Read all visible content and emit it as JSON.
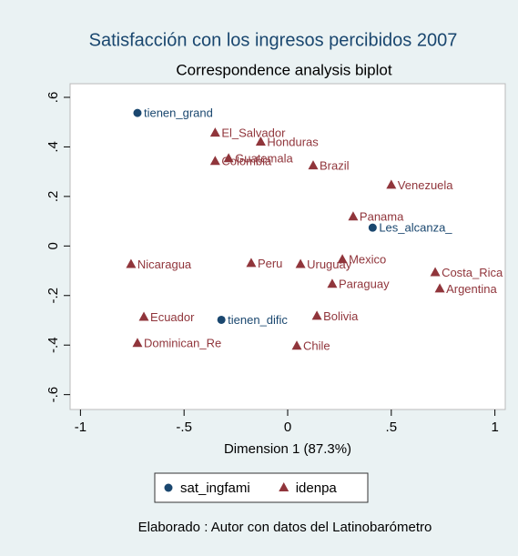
{
  "chart_data": {
    "type": "scatter",
    "title": "Satisfacción con los ingresos percibidos 2007",
    "subtitle": "Correspondence analysis biplot",
    "x_label": "Dimension 1 (87.3%)",
    "note": "Elaborado : Autor con datos del Latinobarómetro",
    "xlim": [
      -1.05,
      1.05
    ],
    "ylim": [
      -0.66,
      0.655
    ],
    "xticks": [
      -1,
      {
        "value": -0.5,
        "label": "-.5"
      },
      0,
      {
        "value": 0.5,
        "label": ".5"
      },
      1
    ],
    "yticks": [
      {
        "value": -0.6,
        "label": "-.6"
      },
      {
        "value": -0.4,
        "label": "-.4"
      },
      {
        "value": -0.2,
        "label": "-.2"
      },
      0,
      {
        "value": 0.2,
        "label": ".2"
      },
      {
        "value": 0.4,
        "label": ".4"
      },
      {
        "value": 0.6,
        "label": ".6"
      }
    ],
    "grid": false,
    "legend": "bottom",
    "series": [
      {
        "name": "sat_ingfami",
        "color": "#1a476f",
        "marker": "circle",
        "labels": [
          "tienen_grand",
          "Les_alcanza_",
          "tienen_dific"
        ],
        "x": [
          -0.725,
          0.41,
          -0.32
        ],
        "values": [
          0.537,
          0.074,
          -0.298
        ]
      },
      {
        "name": "idenpa",
        "color": "#90353b",
        "marker": "triangle",
        "labels": [
          "El_Salvador",
          "Honduras",
          "Guatemala",
          "Colombia",
          "Brazil",
          "Venezuela",
          "Panama",
          "Nicaragua",
          "Peru",
          "Uruguay",
          "Mexico",
          "Paraguay",
          "Costa_Rica",
          "Argentina",
          "Ecuador",
          "Bolivia",
          "Dominican_Re",
          "Chile"
        ],
        "x": [
          -0.35,
          -0.13,
          -0.285,
          -0.35,
          0.123,
          0.5,
          0.316,
          -0.756,
          -0.176,
          0.062,
          0.264,
          0.215,
          0.712,
          0.734,
          -0.694,
          0.141,
          -0.725,
          0.044
        ],
        "values": [
          0.456,
          0.42,
          0.353,
          0.342,
          0.324,
          0.246,
          0.118,
          -0.074,
          -0.07,
          -0.074,
          -0.055,
          -0.154,
          -0.107,
          -0.173,
          -0.287,
          -0.283,
          -0.393,
          -0.404
        ]
      }
    ]
  }
}
